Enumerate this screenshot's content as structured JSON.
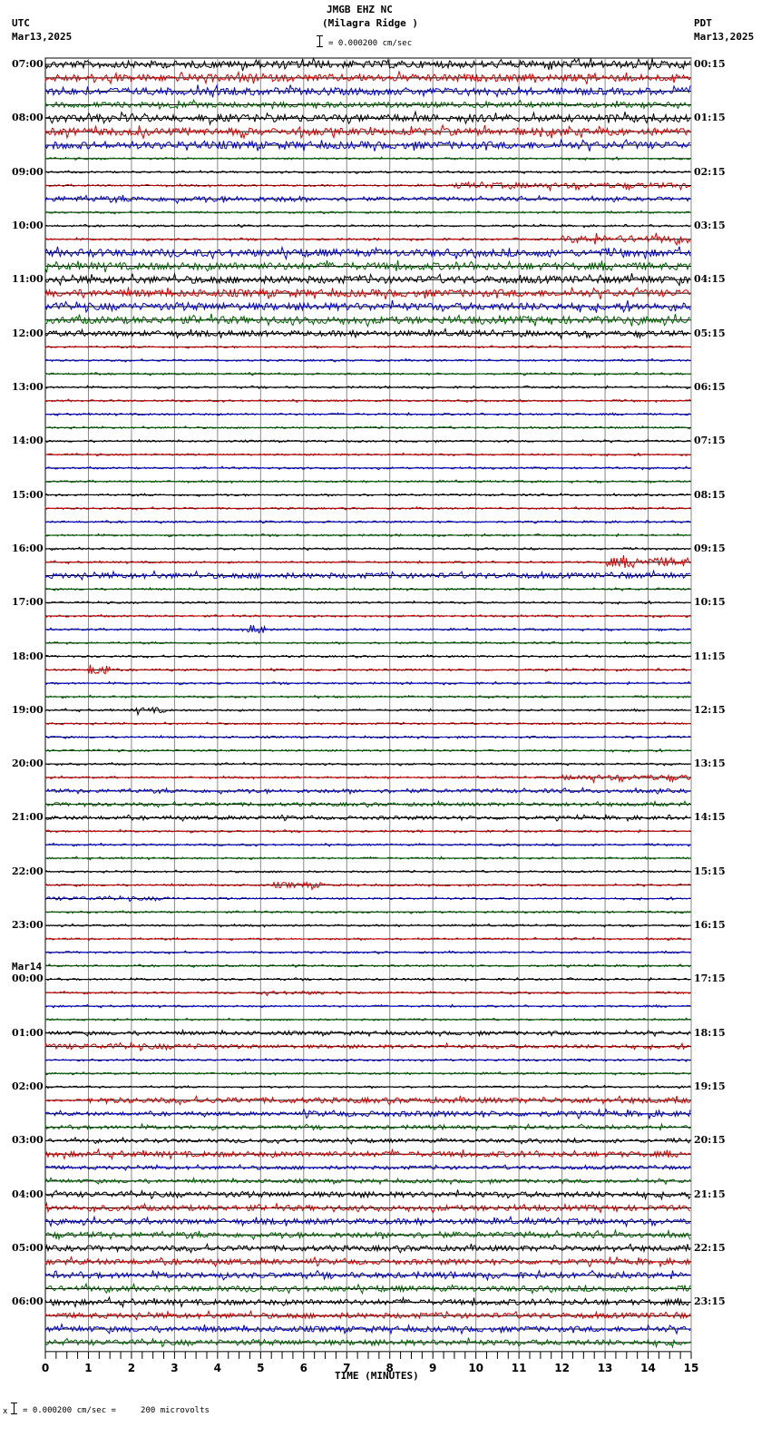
{
  "header": {
    "station": "JMGB EHZ NC",
    "location": "(Milagra Ridge )",
    "scale_text": "= 0.000200 cm/sec",
    "left_tz": "UTC",
    "left_date": "Mar13,2025",
    "right_tz": "PDT",
    "right_date": "Mar13,2025"
  },
  "footer": {
    "scale_note": "= 0.000200 cm/sec =     200 microvolts",
    "marker": "x"
  },
  "chart_data": {
    "type": "line",
    "title": "JMGB EHZ NC (Milagra Ridge )",
    "subtitle": "= 0.000200 cm/sec",
    "xlabel": "TIME (MINUTES)",
    "ylabel": "",
    "x_ticks": [
      "0",
      "1",
      "2",
      "3",
      "4",
      "5",
      "6",
      "7",
      "8",
      "9",
      "10",
      "11",
      "12",
      "13",
      "14",
      "15"
    ],
    "xlim": [
      0,
      15
    ],
    "grid": true,
    "traces_per_hour": 4,
    "trace_colors": [
      "#000000",
      "#dd0000",
      "#0000dd",
      "#006600"
    ],
    "left_labels": [
      {
        "row": 0,
        "text": "07:00"
      },
      {
        "row": 4,
        "text": "08:00"
      },
      {
        "row": 8,
        "text": "09:00"
      },
      {
        "row": 12,
        "text": "10:00"
      },
      {
        "row": 16,
        "text": "11:00"
      },
      {
        "row": 20,
        "text": "12:00"
      },
      {
        "row": 24,
        "text": "13:00"
      },
      {
        "row": 28,
        "text": "14:00"
      },
      {
        "row": 32,
        "text": "15:00"
      },
      {
        "row": 36,
        "text": "16:00"
      },
      {
        "row": 40,
        "text": "17:00"
      },
      {
        "row": 44,
        "text": "18:00"
      },
      {
        "row": 48,
        "text": "19:00"
      },
      {
        "row": 52,
        "text": "20:00"
      },
      {
        "row": 56,
        "text": "21:00"
      },
      {
        "row": 60,
        "text": "22:00"
      },
      {
        "row": 64,
        "text": "23:00"
      },
      {
        "row": 68,
        "text": "00:00",
        "date": "Mar14"
      },
      {
        "row": 72,
        "text": "01:00"
      },
      {
        "row": 76,
        "text": "02:00"
      },
      {
        "row": 80,
        "text": "03:00"
      },
      {
        "row": 84,
        "text": "04:00"
      },
      {
        "row": 88,
        "text": "05:00"
      },
      {
        "row": 92,
        "text": "06:00"
      }
    ],
    "right_labels": [
      {
        "row": 0,
        "text": "00:15"
      },
      {
        "row": 4,
        "text": "01:15"
      },
      {
        "row": 8,
        "text": "02:15"
      },
      {
        "row": 12,
        "text": "03:15"
      },
      {
        "row": 16,
        "text": "04:15"
      },
      {
        "row": 20,
        "text": "05:15"
      },
      {
        "row": 24,
        "text": "06:15"
      },
      {
        "row": 28,
        "text": "07:15"
      },
      {
        "row": 32,
        "text": "08:15"
      },
      {
        "row": 36,
        "text": "09:15"
      },
      {
        "row": 40,
        "text": "10:15"
      },
      {
        "row": 44,
        "text": "11:15"
      },
      {
        "row": 48,
        "text": "12:15"
      },
      {
        "row": 52,
        "text": "13:15"
      },
      {
        "row": 56,
        "text": "14:15"
      },
      {
        "row": 60,
        "text": "15:15"
      },
      {
        "row": 64,
        "text": "16:15"
      },
      {
        "row": 68,
        "text": "17:15"
      },
      {
        "row": 72,
        "text": "18:15"
      },
      {
        "row": 76,
        "text": "19:15"
      },
      {
        "row": 80,
        "text": "20:15"
      },
      {
        "row": 84,
        "text": "21:15"
      },
      {
        "row": 88,
        "text": "22:15"
      },
      {
        "row": 92,
        "text": "23:15"
      }
    ],
    "trace_amplitudes": [
      4,
      4,
      4,
      3,
      4,
      4,
      4,
      1,
      1,
      1,
      2,
      1,
      1,
      1,
      4,
      4,
      4,
      4,
      4,
      4,
      3,
      1,
      1,
      1,
      1,
      1,
      1,
      1,
      1,
      1,
      1,
      1,
      1,
      1,
      1,
      1,
      1,
      1,
      3,
      1,
      1,
      1,
      1,
      1,
      1,
      1,
      1,
      1,
      1,
      1,
      1,
      1,
      1,
      1,
      2,
      2,
      2,
      1,
      1,
      1,
      1,
      1,
      1,
      1,
      1,
      1,
      1,
      1,
      1,
      1,
      1,
      1,
      2,
      2,
      1,
      1,
      1,
      1,
      2,
      2,
      2,
      3,
      2,
      2,
      3,
      3,
      3,
      3,
      3,
      3,
      3,
      3,
      3,
      3,
      3,
      3
    ],
    "events": [
      {
        "row": 9,
        "from_min": 9.5,
        "to_min": 15,
        "amp": 3
      },
      {
        "row": 10,
        "from_min": 0,
        "to_min": 6,
        "amp": 3
      },
      {
        "row": 13,
        "from_min": 12,
        "to_min": 15,
        "amp": 4
      },
      {
        "row": 20,
        "from_min": 0,
        "to_min": 5,
        "amp": 3
      },
      {
        "row": 37,
        "from_min": 13,
        "to_min": 15,
        "amp": 5
      },
      {
        "row": 38,
        "from_min": 0,
        "to_min": 12,
        "amp": 3
      },
      {
        "row": 42,
        "from_min": 4.7,
        "to_min": 5.1,
        "amp": 5
      },
      {
        "row": 45,
        "from_min": 1,
        "to_min": 1.5,
        "amp": 6
      },
      {
        "row": 48,
        "from_min": 2,
        "to_min": 2.8,
        "amp": 3
      },
      {
        "row": 53,
        "from_min": 12,
        "to_min": 15,
        "amp": 3
      },
      {
        "row": 61,
        "from_min": 5.3,
        "to_min": 6.5,
        "amp": 3
      },
      {
        "row": 62,
        "from_min": 0,
        "to_min": 3,
        "amp": 2
      },
      {
        "row": 69,
        "from_min": 5,
        "to_min": 6.5,
        "amp": 2
      },
      {
        "row": 73,
        "from_min": 0,
        "to_min": 4,
        "amp": 3
      },
      {
        "row": 77,
        "from_min": 1,
        "to_min": 15,
        "amp": 3
      },
      {
        "row": 78,
        "from_min": 6,
        "to_min": 15,
        "amp": 3
      }
    ]
  }
}
